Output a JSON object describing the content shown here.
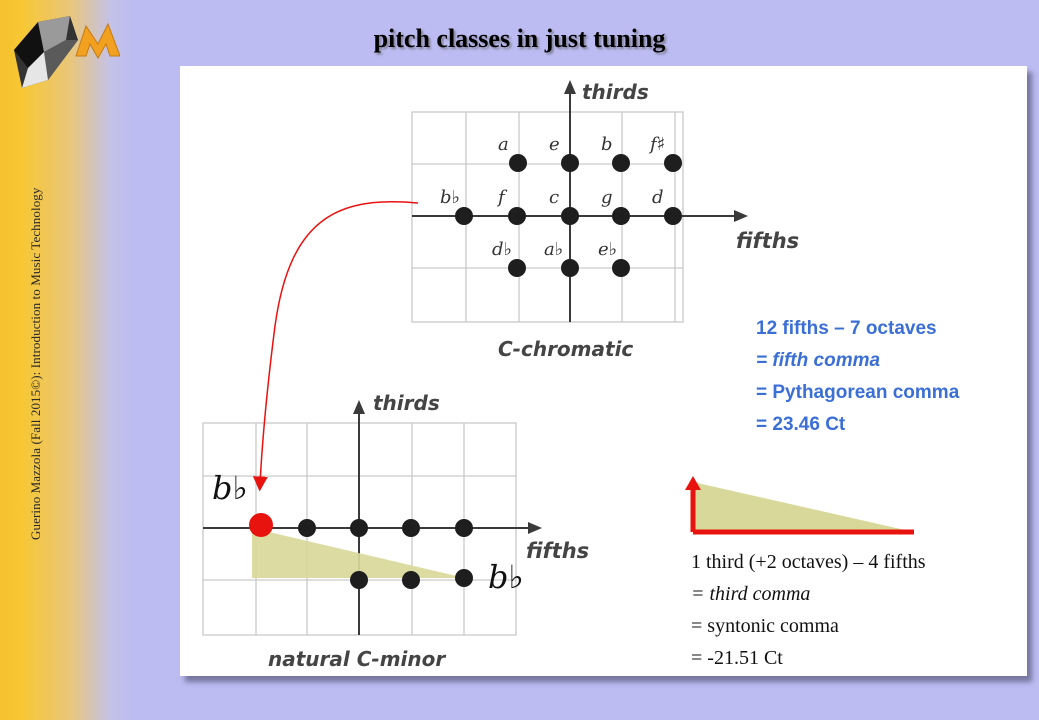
{
  "slide": {
    "title": "pitch classes in just tuning",
    "sidebar_text": "Guerino Mazzola (Fall 2015©): Introduction to Music Technology",
    "logo_icon": "mazzola-logo-icon"
  },
  "chromatic_diagram": {
    "y_axis_label": "thirds",
    "x_axis_label": "fifths",
    "caption": "C-chromatic",
    "row_upper": [
      "a",
      "e",
      "b",
      "f♯"
    ],
    "row_middle": [
      "b♭",
      "f",
      "c",
      "g",
      "d"
    ],
    "row_lower": [
      "d♭",
      "a♭",
      "e♭"
    ]
  },
  "minor_diagram": {
    "y_axis_label": "thirds",
    "x_axis_label": "fifths",
    "caption": "natural C-minor",
    "label_top": "b♭",
    "label_bottom": "b♭"
  },
  "fifth_comma_note": {
    "line1": "12 fifths – 7 octaves",
    "line2": "= fifth comma",
    "line3": "= Pythagorean comma",
    "line4": "= 23.46 Ct"
  },
  "third_comma_note": {
    "line1": "1 third (+2 octaves) – 4 fifths",
    "line2": "= third comma",
    "line3": "= syntonic comma",
    "line4": "= -21.51 Ct"
  },
  "colors": {
    "note_blue": "#3b6fd6",
    "arrow_red": "#e8120f",
    "wedge_fill": "#d8d89a",
    "dot": "#1e1e1e"
  }
}
